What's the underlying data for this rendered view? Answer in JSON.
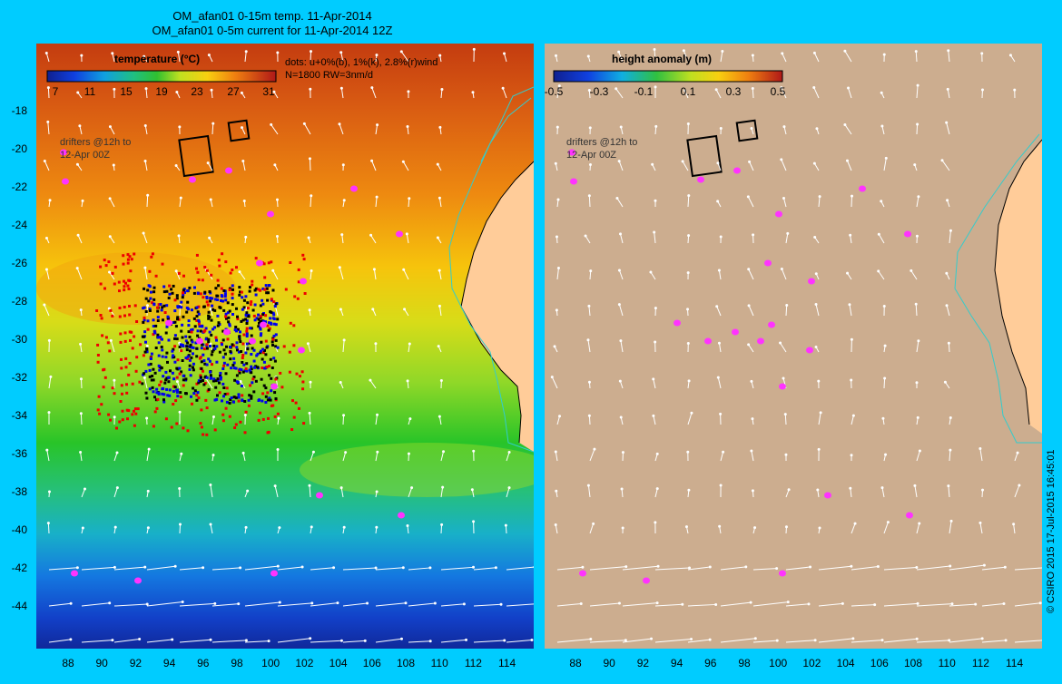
{
  "titles": {
    "line1": "OM_afan01 0-15m temp. 11-Apr-2014",
    "line2": "OM_afan01 0-5m current for 11-Apr-2014 12Z"
  },
  "left_panel": {
    "colorbar_title": "temperature (°C)",
    "colorbar_ticks": [
      "7",
      "11",
      "15",
      "19",
      "23",
      "27",
      "31"
    ],
    "dots_note_line1": "dots: u+0%(b), 1%(k), 2.8%(r)wind",
    "dots_note_line2": "N=1800 RW=3nm/d",
    "drifters_line1": "drifters @12h to",
    "drifters_line2": "12-Apr 00Z",
    "colors": {
      "land": "#ffcc99",
      "coast": "#000000",
      "isobath": "#33cccc",
      "arrows": "#ffffff",
      "drifters": "#ff33ff",
      "dots_blue": "#0000ee",
      "dots_black": "#000000",
      "dots_red": "#ee0000"
    }
  },
  "right_panel": {
    "colorbar_title": "height anomaly (m)",
    "colorbar_ticks": [
      "-0.5",
      "-0.3",
      "-0.1",
      "0.1",
      "0.3",
      "0.5"
    ],
    "drifters_line1": "drifters @12h to",
    "drifters_line2": "12-Apr 00Z",
    "background": "#ccad8f"
  },
  "axes": {
    "y_ticks": [
      "-18",
      "-20",
      "-22",
      "-24",
      "-26",
      "-28",
      "-30",
      "-32",
      "-34",
      "-36",
      "-38",
      "-40",
      "-42",
      "-44"
    ],
    "x_ticks": [
      "88",
      "90",
      "92",
      "94",
      "96",
      "98",
      "100",
      "102",
      "104",
      "106",
      "108",
      "110",
      "112",
      "114"
    ]
  },
  "copyright": "© CSIRO 2015  17-Jul-2015 16:45:01"
}
